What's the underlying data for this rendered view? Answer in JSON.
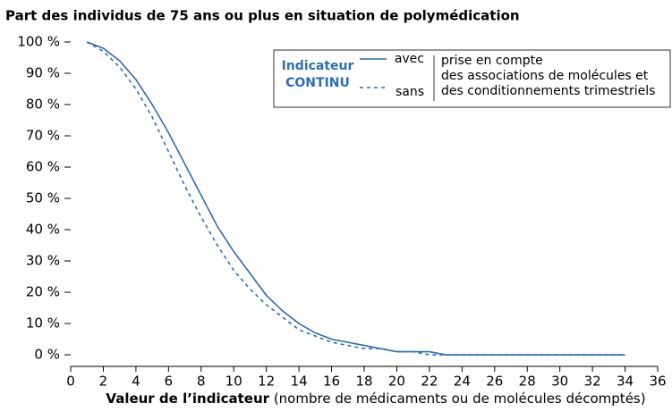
{
  "chart_data": {
    "type": "line",
    "title": "Part des individus de 75 ans ou plus en situation de polymédication",
    "x_label_bold": "Valeur de l’indicateur",
    "x_label_rest": " (nombre de médicaments ou de molécules décomptés)",
    "legend_title": [
      "Indicateur",
      "CONTINU"
    ],
    "legend_note": [
      "prise en compte",
      "des associations de molécules et",
      "des conditionnements trimestriels"
    ],
    "x": [
      1,
      2,
      3,
      4,
      5,
      6,
      7,
      8,
      9,
      10,
      11,
      12,
      13,
      14,
      15,
      16,
      17,
      18,
      19,
      20,
      21,
      22,
      23,
      24,
      25,
      26,
      27,
      28,
      29,
      30,
      31,
      32,
      33,
      34
    ],
    "series": [
      {
        "name": "avec",
        "color": "#2e6db4",
        "dash": false,
        "values": [
          100,
          98,
          94,
          88,
          80,
          71,
          61,
          51,
          41,
          33,
          26,
          19,
          14,
          10,
          7,
          5,
          4,
          3,
          2,
          1,
          1,
          1,
          0,
          0,
          0,
          0,
          0,
          0,
          0,
          0,
          0,
          0,
          0,
          0
        ]
      },
      {
        "name": "sans",
        "color": "#2e6db4",
        "dash": true,
        "values": [
          100,
          97,
          92,
          85,
          76,
          65,
          54,
          44,
          35,
          27,
          21,
          16,
          12,
          8,
          6,
          4,
          3,
          2,
          2,
          1,
          1,
          0,
          0,
          0,
          0,
          0,
          0,
          0,
          0,
          0,
          0,
          0,
          0,
          0
        ]
      }
    ],
    "xlim": [
      0,
      36
    ],
    "xticks": [
      0,
      2,
      4,
      6,
      8,
      10,
      12,
      14,
      16,
      18,
      20,
      22,
      24,
      26,
      28,
      30,
      32,
      34,
      36
    ],
    "ylim": [
      -3.7,
      100
    ],
    "yticks": [
      {
        "value": 0,
        "label": "0 %"
      },
      {
        "value": 10,
        "label": "10 %"
      },
      {
        "value": 20,
        "label": "20 %"
      },
      {
        "value": 30,
        "label": "30 %"
      },
      {
        "value": 40,
        "label": "40 %"
      },
      {
        "value": 50,
        "label": "50 %"
      },
      {
        "value": 60,
        "label": "60 %"
      },
      {
        "value": 70,
        "label": "70 %"
      },
      {
        "value": 80,
        "label": "80 %"
      },
      {
        "value": 90,
        "label": "90 %"
      },
      {
        "value": 100,
        "label": "100 %"
      }
    ]
  }
}
